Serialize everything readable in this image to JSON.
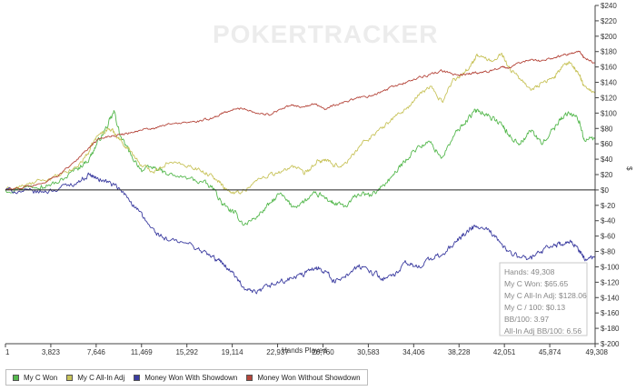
{
  "watermark": "POKERTRACKER",
  "chart_data": {
    "type": "line",
    "xlabel": "Hands Played",
    "ylabel": "$",
    "x_ticks": [
      "1",
      "3,823",
      "7,646",
      "11,469",
      "15,292",
      "19,114",
      "22,937",
      "26,760",
      "30,583",
      "34,406",
      "38,228",
      "42,051",
      "45,874",
      "49,308"
    ],
    "y_ticks": [
      "$240",
      "$220",
      "$200",
      "$180",
      "$160",
      "$140",
      "$120",
      "$100",
      "$80",
      "$60",
      "$40",
      "$20",
      "$0",
      "$-20",
      "$-40",
      "$-60",
      "$-80",
      "$-100",
      "$-120",
      "$-140",
      "$-160",
      "$-180",
      "$-200"
    ],
    "xlim": [
      1,
      49308
    ],
    "ylim": [
      -200,
      240
    ],
    "grid": false,
    "legend_position": "bottom",
    "series": [
      {
        "name": "My C Won",
        "color": "#55b84e",
        "points": [
          [
            1,
            0
          ],
          [
            1500,
            3
          ],
          [
            3000,
            6
          ],
          [
            4500,
            10
          ],
          [
            6000,
            28
          ],
          [
            7000,
            40
          ],
          [
            7646,
            60
          ],
          [
            8600,
            85
          ],
          [
            9100,
            102
          ],
          [
            9600,
            70
          ],
          [
            10500,
            45
          ],
          [
            11469,
            25
          ],
          [
            12500,
            30
          ],
          [
            13500,
            20
          ],
          [
            15292,
            15
          ],
          [
            16500,
            10
          ],
          [
            17500,
            0
          ],
          [
            18200,
            -20
          ],
          [
            19114,
            -30
          ],
          [
            20000,
            -45
          ],
          [
            21000,
            -35
          ],
          [
            22000,
            -20
          ],
          [
            22937,
            -5
          ],
          [
            24000,
            -22
          ],
          [
            25000,
            -15
          ],
          [
            26000,
            -5
          ],
          [
            26760,
            -10
          ],
          [
            27500,
            -18
          ],
          [
            28500,
            -22
          ],
          [
            29500,
            -5
          ],
          [
            30583,
            -8
          ],
          [
            31500,
            5
          ],
          [
            32500,
            20
          ],
          [
            33500,
            40
          ],
          [
            34406,
            55
          ],
          [
            35500,
            62
          ],
          [
            36500,
            42
          ],
          [
            37500,
            70
          ],
          [
            38228,
            85
          ],
          [
            39000,
            98
          ],
          [
            39500,
            105
          ],
          [
            40500,
            96
          ],
          [
            41500,
            85
          ],
          [
            42051,
            72
          ],
          [
            43000,
            60
          ],
          [
            44000,
            78
          ],
          [
            44800,
            60
          ],
          [
            45874,
            80
          ],
          [
            46500,
            95
          ],
          [
            47300,
            100
          ],
          [
            48000,
            90
          ],
          [
            48400,
            65
          ],
          [
            49308,
            66
          ]
        ],
        "smooth": 6
      },
      {
        "name": "My C All-In Adj",
        "color": "#c8c35a",
        "points": [
          [
            1,
            0
          ],
          [
            1500,
            5
          ],
          [
            3000,
            12
          ],
          [
            4500,
            18
          ],
          [
            6000,
            30
          ],
          [
            7000,
            50
          ],
          [
            7646,
            70
          ],
          [
            8600,
            80
          ],
          [
            9100,
            75
          ],
          [
            9600,
            65
          ],
          [
            10500,
            50
          ],
          [
            11469,
            30
          ],
          [
            12500,
            25
          ],
          [
            13500,
            35
          ],
          [
            15292,
            32
          ],
          [
            16500,
            25
          ],
          [
            17500,
            15
          ],
          [
            18200,
            5
          ],
          [
            19114,
            -5
          ],
          [
            20000,
            0
          ],
          [
            21000,
            12
          ],
          [
            22000,
            20
          ],
          [
            22937,
            22
          ],
          [
            24000,
            32
          ],
          [
            25000,
            20
          ],
          [
            26000,
            35
          ],
          [
            26760,
            40
          ],
          [
            27500,
            30
          ],
          [
            28500,
            35
          ],
          [
            29500,
            55
          ],
          [
            30583,
            70
          ],
          [
            31500,
            80
          ],
          [
            32500,
            95
          ],
          [
            33500,
            105
          ],
          [
            34406,
            120
          ],
          [
            35500,
            135
          ],
          [
            36500,
            115
          ],
          [
            37500,
            145
          ],
          [
            38228,
            150
          ],
          [
            39000,
            165
          ],
          [
            39500,
            175
          ],
          [
            40500,
            168
          ],
          [
            41500,
            178
          ],
          [
            42051,
            160
          ],
          [
            43000,
            145
          ],
          [
            44000,
            130
          ],
          [
            44800,
            140
          ],
          [
            45874,
            145
          ],
          [
            46500,
            160
          ],
          [
            47300,
            165
          ],
          [
            48000,
            150
          ],
          [
            48400,
            135
          ],
          [
            49308,
            128
          ]
        ],
        "smooth": 5
      },
      {
        "name": "Money Won With Showdown",
        "color": "#3b3ca0",
        "points": [
          [
            1,
            0
          ],
          [
            1500,
            -2
          ],
          [
            3000,
            -3
          ],
          [
            4500,
            2
          ],
          [
            6000,
            10
          ],
          [
            7000,
            20
          ],
          [
            7646,
            15
          ],
          [
            8600,
            10
          ],
          [
            9600,
            0
          ],
          [
            10500,
            -15
          ],
          [
            11469,
            -35
          ],
          [
            12500,
            -55
          ],
          [
            13500,
            -65
          ],
          [
            15292,
            -70
          ],
          [
            16500,
            -80
          ],
          [
            17500,
            -90
          ],
          [
            18200,
            -95
          ],
          [
            19114,
            -110
          ],
          [
            20000,
            -130
          ],
          [
            21000,
            -135
          ],
          [
            22000,
            -125
          ],
          [
            22937,
            -120
          ],
          [
            24000,
            -115
          ],
          [
            25000,
            -110
          ],
          [
            26000,
            -100
          ],
          [
            26760,
            -105
          ],
          [
            27500,
            -120
          ],
          [
            28500,
            -110
          ],
          [
            29500,
            -100
          ],
          [
            30583,
            -105
          ],
          [
            31500,
            -115
          ],
          [
            32500,
            -112
          ],
          [
            33500,
            -95
          ],
          [
            34406,
            -100
          ],
          [
            35500,
            -90
          ],
          [
            36500,
            -85
          ],
          [
            37500,
            -70
          ],
          [
            38228,
            -60
          ],
          [
            39000,
            -50
          ],
          [
            39500,
            -48
          ],
          [
            40500,
            -55
          ],
          [
            41500,
            -70
          ],
          [
            42051,
            -80
          ],
          [
            43000,
            -88
          ],
          [
            44000,
            -90
          ],
          [
            44800,
            -80
          ],
          [
            45874,
            -70
          ],
          [
            46500,
            -72
          ],
          [
            47300,
            -68
          ],
          [
            48000,
            -78
          ],
          [
            48400,
            -90
          ],
          [
            49308,
            -88
          ]
        ],
        "smooth": 6
      },
      {
        "name": "Money Won Without Showdown",
        "color": "#b5463b",
        "points": [
          [
            1,
            0
          ],
          [
            1500,
            3
          ],
          [
            3000,
            8
          ],
          [
            4500,
            20
          ],
          [
            6000,
            40
          ],
          [
            7000,
            55
          ],
          [
            7646,
            65
          ],
          [
            8600,
            70
          ],
          [
            9600,
            72
          ],
          [
            10500,
            75
          ],
          [
            11469,
            78
          ],
          [
            12500,
            80
          ],
          [
            13500,
            85
          ],
          [
            15292,
            88
          ],
          [
            16500,
            90
          ],
          [
            17500,
            95
          ],
          [
            18200,
            100
          ],
          [
            19114,
            105
          ],
          [
            20000,
            106
          ],
          [
            21000,
            100
          ],
          [
            22000,
            98
          ],
          [
            22937,
            105
          ],
          [
            24000,
            110
          ],
          [
            25000,
            108
          ],
          [
            26000,
            112
          ],
          [
            26760,
            105
          ],
          [
            27500,
            110
          ],
          [
            28500,
            115
          ],
          [
            29500,
            120
          ],
          [
            30583,
            122
          ],
          [
            31500,
            128
          ],
          [
            32500,
            135
          ],
          [
            33500,
            140
          ],
          [
            34406,
            145
          ],
          [
            35500,
            150
          ],
          [
            36500,
            155
          ],
          [
            37500,
            150
          ],
          [
            38228,
            150
          ],
          [
            39000,
            152
          ],
          [
            39500,
            152
          ],
          [
            40500,
            155
          ],
          [
            41500,
            160
          ],
          [
            42051,
            158
          ],
          [
            43000,
            165
          ],
          [
            44000,
            170
          ],
          [
            44800,
            168
          ],
          [
            45874,
            172
          ],
          [
            46500,
            175
          ],
          [
            47300,
            178
          ],
          [
            48000,
            180
          ],
          [
            48400,
            172
          ],
          [
            49308,
            165
          ]
        ],
        "smooth": 2.5
      }
    ]
  },
  "tooltip": {
    "lines": [
      "Hands: 49,308",
      "My C Won: $65.65",
      "My C All-In Adj: $128.06",
      "My C / 100: $0.13",
      "BB/100: 3.97",
      "All-In Adj BB/100: 6.56"
    ]
  }
}
